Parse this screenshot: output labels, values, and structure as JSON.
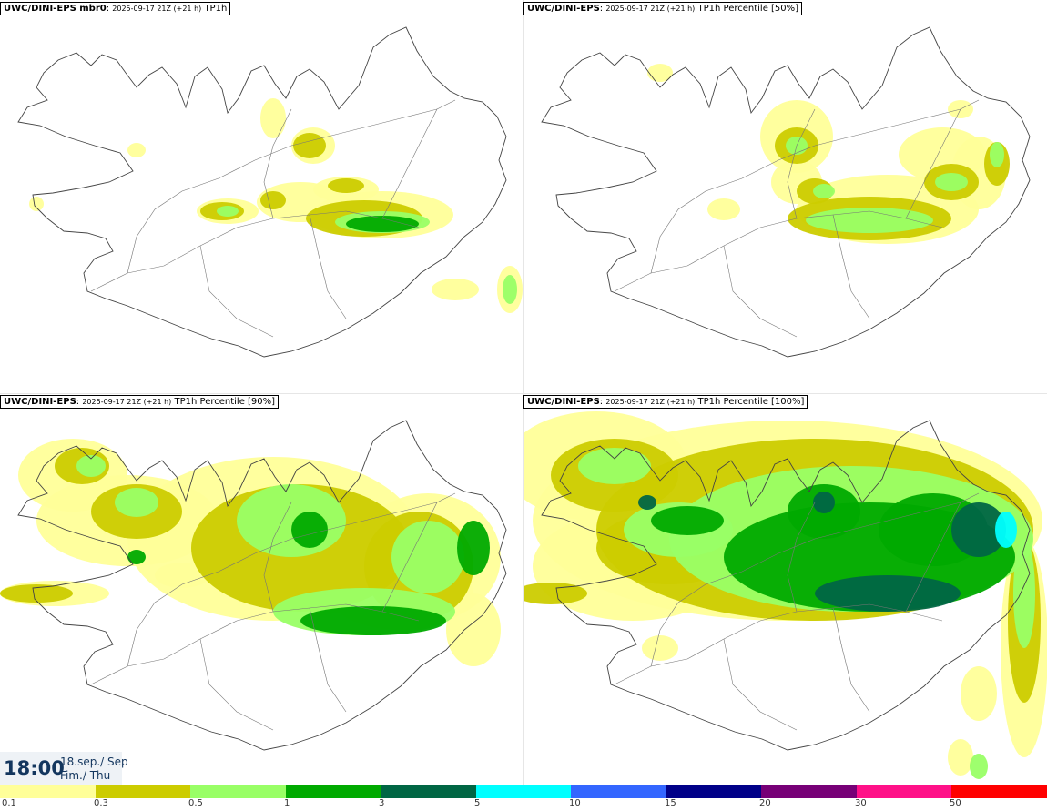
{
  "panels": [
    {
      "model": "UWC/DINI-EPS mbr0",
      "run": "2025-09-17 21Z (+21 h)",
      "field": "TP1h"
    },
    {
      "model": "UWC/DINI-EPS",
      "run": "2025-09-17 21Z (+21 h)",
      "field": "TP1h Percentile [50%]"
    },
    {
      "model": "UWC/DINI-EPS",
      "run": "2025-09-17 21Z (+21 h)",
      "field": "TP1h Percentile [90%]"
    },
    {
      "model": "UWC/DINI-EPS",
      "run": "2025-09-17 21Z (+21 h)",
      "field": "TP1h Percentile [100%]"
    }
  ],
  "valid_time": {
    "time": "18:00",
    "date": "18.sep./ Sep",
    "day": "Fim./ Thu"
  },
  "legend": {
    "colors": [
      "#ffff99",
      "#cccc00",
      "#99ff66",
      "#00aa00",
      "#006644",
      "#00ffff",
      "#3366ff",
      "#000088",
      "#770077",
      "#ff1188",
      "#ff0000"
    ],
    "ticks": [
      "0.1",
      "0.3",
      "0.5",
      "1",
      "3",
      "5",
      "10",
      "15",
      "20",
      "30",
      "50"
    ]
  }
}
